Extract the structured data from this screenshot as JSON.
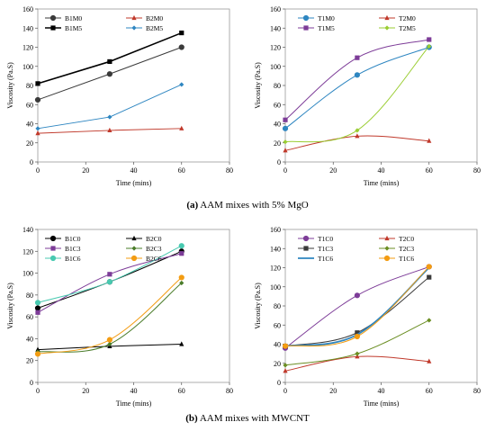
{
  "captions": [
    {
      "label": "(a)",
      "text": "AAM mixes with 5% MgO"
    },
    {
      "label": "(b)",
      "text": "AAM mixes with MWCNT"
    }
  ],
  "chart_data": [
    {
      "type": "line",
      "xlabel": "Time (mins)",
      "ylabel": "Viscosity (Pa.S)",
      "xlim": [
        0,
        80
      ],
      "ylim": [
        0,
        160
      ],
      "xticks": [
        0,
        20,
        40,
        60,
        80
      ],
      "yticks": [
        0,
        20,
        40,
        60,
        80,
        100,
        120,
        140,
        160
      ],
      "x": [
        0,
        30,
        60
      ],
      "smooth": false,
      "legend_columns": 2,
      "legend_position": "top-left",
      "series": [
        {
          "name": "B1M0",
          "values": [
            65,
            92,
            120
          ],
          "color": "#3a3a3a",
          "marker": "circle",
          "width": 1
        },
        {
          "name": "B2M0",
          "values": [
            30,
            33,
            35
          ],
          "color": "#c0392b",
          "marker": "triangle",
          "width": 1
        },
        {
          "name": "B1M5",
          "values": [
            82,
            105,
            135
          ],
          "color": "#000000",
          "marker": "square",
          "width": 1.6
        },
        {
          "name": "B2M5",
          "values": [
            35,
            47,
            81
          ],
          "color": "#2e86c1",
          "marker": "diamond",
          "width": 1
        }
      ]
    },
    {
      "type": "line",
      "xlabel": "Time (mins)",
      "ylabel": "Viscosity (Pa.S)",
      "xlim": [
        0,
        80
      ],
      "ylim": [
        0,
        160
      ],
      "xticks": [
        0,
        20,
        40,
        60,
        80
      ],
      "yticks": [
        0,
        20,
        40,
        60,
        80,
        100,
        120,
        140,
        160
      ],
      "x": [
        0,
        30,
        60
      ],
      "smooth": true,
      "legend_columns": 2,
      "legend_position": "top",
      "series": [
        {
          "name": "T1M0",
          "values": [
            35,
            91,
            120
          ],
          "color": "#2e86c1",
          "marker": "circle",
          "width": 1
        },
        {
          "name": "T2M0",
          "values": [
            12,
            27,
            22
          ],
          "color": "#c0392b",
          "marker": "triangle",
          "width": 1
        },
        {
          "name": "T1M5",
          "values": [
            44,
            109,
            128
          ],
          "color": "#7d3c98",
          "marker": "square",
          "width": 1
        },
        {
          "name": "T2M5",
          "values": [
            21,
            33,
            121
          ],
          "color": "#9acd32",
          "marker": "diamond",
          "width": 1
        }
      ]
    },
    {
      "type": "line",
      "xlabel": "Time (mins)",
      "ylabel": "Viscosity (Pa.S)",
      "xlim": [
        0,
        80
      ],
      "ylim": [
        0,
        140
      ],
      "xticks": [
        0,
        20,
        40,
        60,
        80
      ],
      "yticks": [
        0,
        20,
        40,
        60,
        80,
        100,
        120,
        140
      ],
      "x": [
        0,
        30,
        60
      ],
      "smooth": true,
      "legend_columns": 2,
      "legend_position": "top-left",
      "series": [
        {
          "name": "B1C0",
          "values": [
            68,
            92,
            120
          ],
          "color": "#000000",
          "marker": "circle",
          "width": 1
        },
        {
          "name": "B2C0",
          "values": [
            30,
            33,
            35
          ],
          "color": "#000000",
          "marker": "triangle",
          "width": 1
        },
        {
          "name": "B1C3",
          "values": [
            64,
            99,
            118
          ],
          "color": "#7d3c98",
          "marker": "square",
          "width": 1
        },
        {
          "name": "B2C3",
          "values": [
            28,
            35,
            91
          ],
          "color": "#4a7c2a",
          "marker": "diamond",
          "width": 1
        },
        {
          "name": "B1C6",
          "values": [
            73,
            92,
            125
          ],
          "color": "#48c9b0",
          "marker": "circle",
          "width": 1
        },
        {
          "name": "B2C6",
          "values": [
            26,
            39,
            96
          ],
          "color": "#f39c12",
          "marker": "circle",
          "width": 1
        }
      ]
    },
    {
      "type": "line",
      "xlabel": "Time (mins)",
      "ylabel": "Viscosity (Pa.S)",
      "xlim": [
        0,
        80
      ],
      "ylim": [
        0,
        160
      ],
      "xticks": [
        0,
        20,
        40,
        60,
        80
      ],
      "yticks": [
        0,
        20,
        40,
        60,
        80,
        100,
        120,
        140,
        160
      ],
      "x": [
        0,
        30,
        60
      ],
      "smooth": true,
      "legend_columns": 2,
      "legend_position": "top",
      "series": [
        {
          "name": "T1C0",
          "values": [
            36,
            91,
            121
          ],
          "color": "#7d3c98",
          "marker": "circle",
          "width": 1
        },
        {
          "name": "T2C0",
          "values": [
            12,
            27,
            22
          ],
          "color": "#c0392b",
          "marker": "triangle",
          "width": 1
        },
        {
          "name": "T1C3",
          "values": [
            38,
            52,
            110
          ],
          "color": "#3a3a3a",
          "marker": "square",
          "width": 1
        },
        {
          "name": "T2C3",
          "values": [
            18,
            30,
            65
          ],
          "color": "#6b8e23",
          "marker": "diamond",
          "width": 1
        },
        {
          "name": "T1C6",
          "values": [
            38,
            50,
            120
          ],
          "color": "#2e86c1",
          "marker": "none",
          "width": 1.8
        },
        {
          "name": "T1C6",
          "values": [
            38,
            48,
            121
          ],
          "color": "#f39c12",
          "marker": "circle",
          "width": 1
        }
      ]
    }
  ]
}
